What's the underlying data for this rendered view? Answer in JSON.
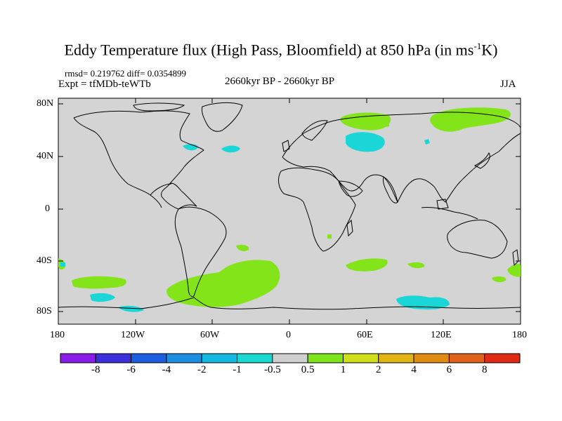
{
  "title_main": "Eddy Temperature flux (High Pass, Bloomfield) at 850 hPa (in ms",
  "title_sup": "-1",
  "title_end": "K)",
  "stats": "rmsd= 0.219762  diff= 0.0354899",
  "experiment": "Expt = tfMDb-teWTb",
  "period": "2660kyr BP - 2660kyr BP",
  "season": "JJA",
  "lat_labels": [
    "80N",
    "40N",
    "0",
    "40S",
    "80S"
  ],
  "lon_labels": [
    "180",
    "120W",
    "60W",
    "0",
    "60E",
    "120E",
    "180"
  ],
  "legend": {
    "labels": [
      "-8",
      "-6",
      "-4",
      "-2",
      "-1",
      "-0.5",
      "0.5",
      "1",
      "2",
      "4",
      "6",
      "8"
    ],
    "colors": [
      "#8a1ee8",
      "#3a2fd8",
      "#1d5ee0",
      "#1d8fe0",
      "#13b8e0",
      "#1ad8cf",
      "#cfcfcf",
      "#7fe41a",
      "#cfe01a",
      "#e0b413",
      "#e08c13",
      "#e0621a",
      "#e02a13"
    ]
  },
  "colors": {
    "ocean_land": "#d4d4d4",
    "positive_anomaly": "#84e41a",
    "negative_anomaly": "#1ad6d6",
    "coast": "#000000"
  }
}
